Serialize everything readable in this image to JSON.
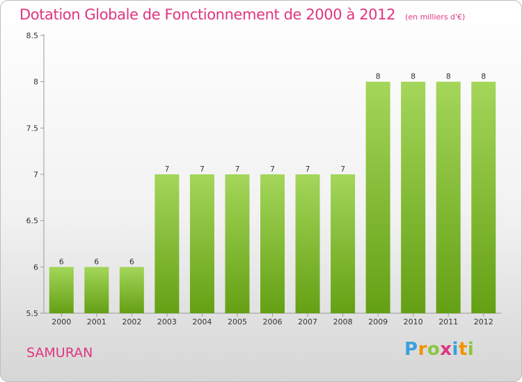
{
  "header": {
    "title": "Dotation Globale de Fonctionnement de 2000 à 2012",
    "subtitle": "(en milliers d'€)"
  },
  "footer": {
    "place": "SAMURAN",
    "logo": [
      "P",
      "r",
      "o",
      "x",
      "i",
      "t",
      "i"
    ]
  },
  "colors": {
    "title": "#e0357f",
    "bar_light": "#a4d65a",
    "bar_dark": "#64a014",
    "logo": [
      "#3aa0dd",
      "#f39200",
      "#8cc63f",
      "#e0357f",
      "#3aa0dd",
      "#f39200",
      "#8cc63f"
    ]
  },
  "chart_data": {
    "type": "bar",
    "categories": [
      "2000",
      "2001",
      "2002",
      "2003",
      "2004",
      "2005",
      "2006",
      "2007",
      "2008",
      "2009",
      "2010",
      "2011",
      "2012"
    ],
    "values": [
      6,
      6,
      6,
      7,
      7,
      7,
      7,
      7,
      7,
      8,
      8,
      8,
      8
    ],
    "data_labels": [
      "6",
      "6",
      "6",
      "7",
      "7",
      "7",
      "7",
      "7",
      "7",
      "8",
      "8",
      "8",
      "8"
    ],
    "ylim": [
      5.5,
      8.5
    ],
    "yticks": [
      "5.5",
      "6",
      "6.5",
      "7",
      "7.5",
      "8",
      "8.5"
    ],
    "grid": false
  }
}
